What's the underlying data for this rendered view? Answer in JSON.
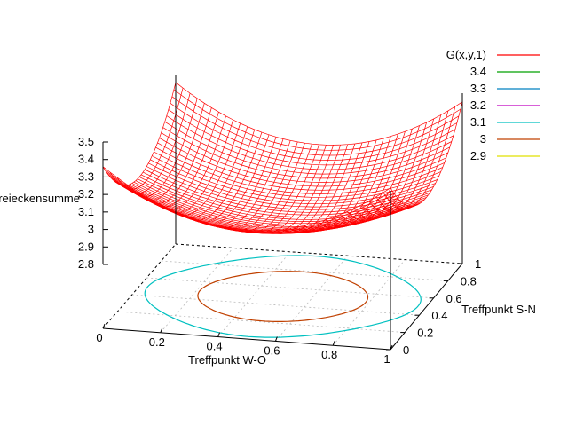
{
  "chart_data": {
    "type": "surface3d",
    "xlabel": "Treffpunkt W-O",
    "ylabel": "Treffpunkt S-N",
    "zlabel": "Dreieckensumme",
    "x_ticks": [
      "0",
      "0.2",
      "0.4",
      "0.6",
      "0.8",
      "1"
    ],
    "y_ticks": [
      "0",
      "0.2",
      "0.4",
      "0.6",
      "0.8",
      "1"
    ],
    "z_ticks": [
      "2.8",
      "2.9",
      "3",
      "3.1",
      "3.2",
      "3.3",
      "3.4",
      "3.5"
    ],
    "xlim": [
      0,
      1
    ],
    "ylim": [
      0,
      1
    ],
    "zlim": [
      2.8,
      3.5
    ],
    "surface": {
      "name": "G(x,y,1)",
      "color": "#ff0000",
      "min_value": 2.94,
      "corner_values": {
        "x0_y0": 3.42,
        "x1_y0": 3.42,
        "x0_y1": 3.42,
        "x1_y1": 3.42
      },
      "edge_mid_value": 3.12
    },
    "contour_levels": [
      {
        "label": "3.4",
        "level": 3.4,
        "color": "#00a000"
      },
      {
        "label": "3.3",
        "level": 3.3,
        "color": "#0080c0"
      },
      {
        "label": "3.2",
        "level": 3.2,
        "color": "#c000c0"
      },
      {
        "label": "3.1",
        "level": 3.1,
        "color": "#00c0c0"
      },
      {
        "label": "3",
        "level": 3.0,
        "color": "#c04000"
      },
      {
        "label": "2.9",
        "level": 2.9,
        "color": "#e0e000"
      }
    ],
    "grid": true,
    "legend_position": "top-right"
  }
}
